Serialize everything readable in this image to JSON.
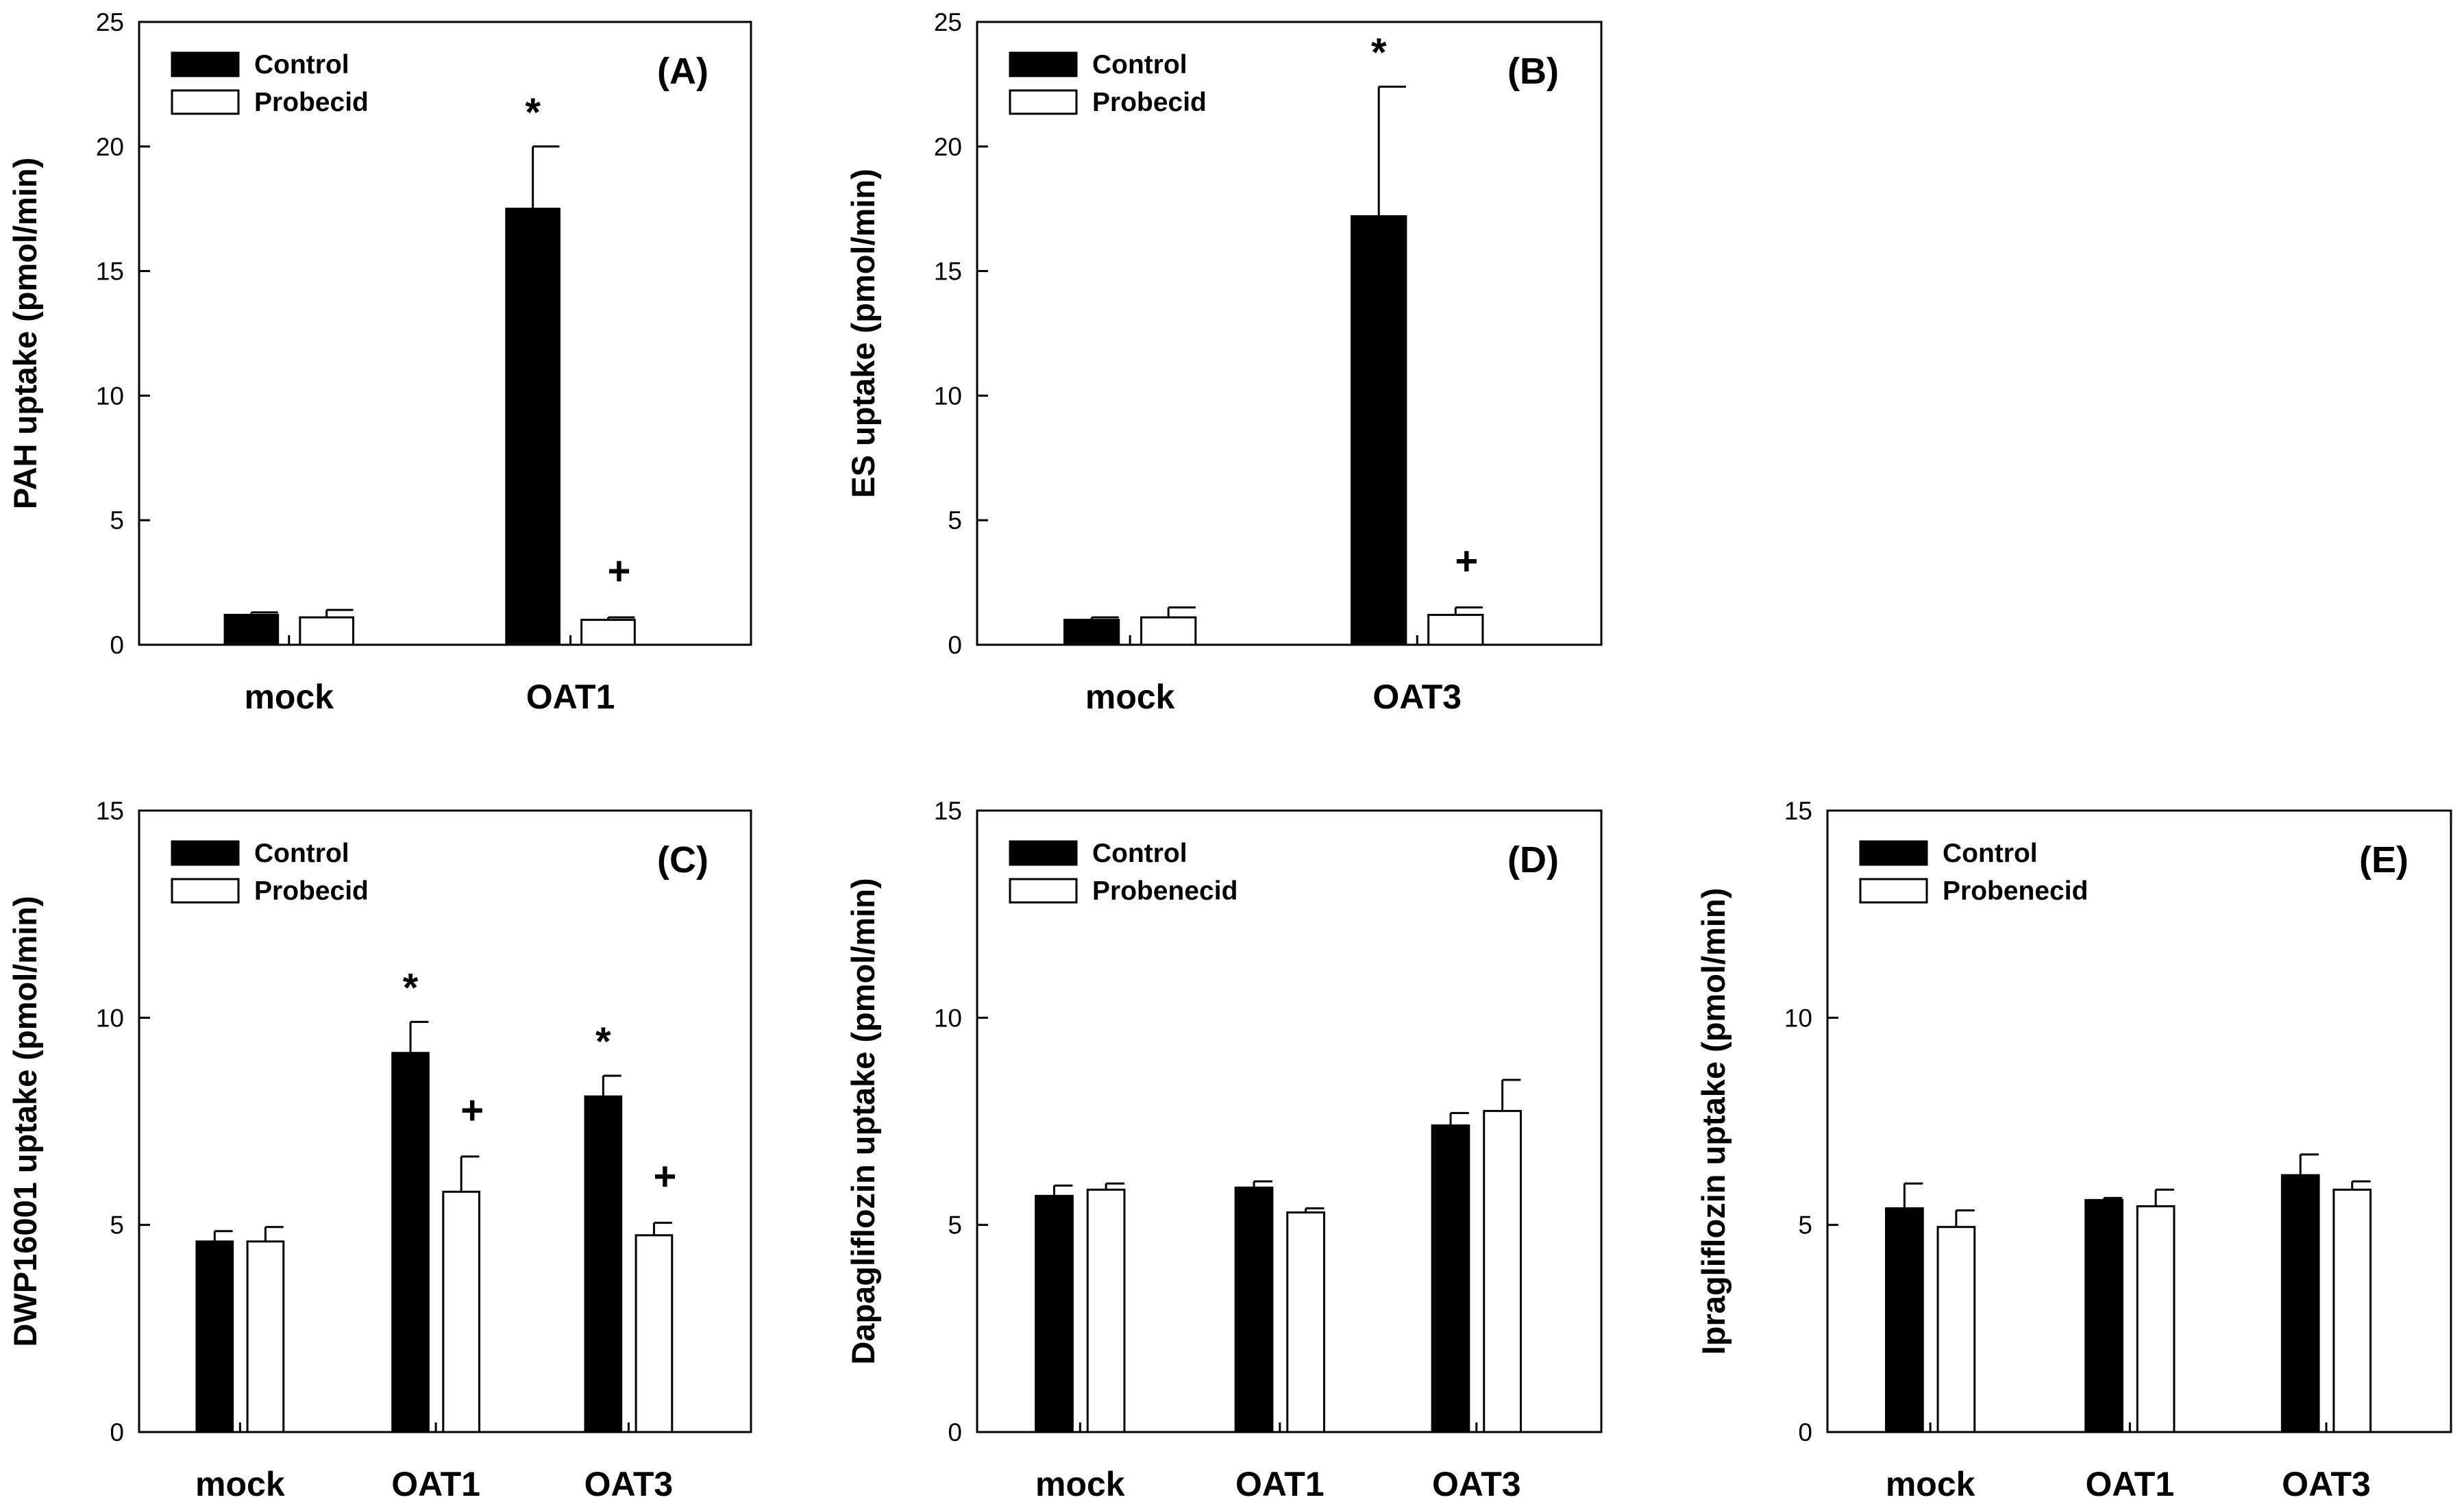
{
  "figure": {
    "colors": {
      "control": "#000000",
      "probecid": "#ffffff",
      "stroke": "#000000"
    }
  },
  "chart_data": [
    {
      "type": "bar",
      "panel_label": "(A)",
      "ylabel": "PAH uptake (pmol/min)",
      "xlabel": "",
      "ylim": [
        0,
        25
      ],
      "yticks": [
        0,
        5,
        10,
        15,
        20,
        25
      ],
      "categories": [
        "mock",
        "OAT1"
      ],
      "series": [
        {
          "name": "Control",
          "values": [
            1.2,
            17.5
          ],
          "errors": [
            0.1,
            2.5
          ]
        },
        {
          "name": "Probecid",
          "values": [
            1.1,
            1.0
          ],
          "errors": [
            0.3,
            0.1
          ]
        }
      ],
      "annotations": [
        {
          "text": "*",
          "category": "OAT1",
          "series": "Control"
        },
        {
          "text": "+",
          "category": "OAT1",
          "series": "Probecid"
        }
      ],
      "legend": "top-left",
      "grid": false
    },
    {
      "type": "bar",
      "panel_label": "(B)",
      "ylabel": "ES uptake (pmol/min)",
      "xlabel": "",
      "ylim": [
        0,
        25
      ],
      "yticks": [
        0,
        5,
        10,
        15,
        20,
        25
      ],
      "categories": [
        "mock",
        "OAT3"
      ],
      "series": [
        {
          "name": "Control",
          "values": [
            1.0,
            17.2
          ],
          "errors": [
            0.1,
            5.2
          ]
        },
        {
          "name": "Probecid",
          "values": [
            1.1,
            1.2
          ],
          "errors": [
            0.4,
            0.3
          ]
        }
      ],
      "annotations": [
        {
          "text": "*",
          "category": "OAT3",
          "series": "Control"
        },
        {
          "text": "+",
          "category": "OAT3",
          "series": "Probecid"
        }
      ],
      "legend": "top-left",
      "grid": false
    },
    {
      "type": "bar",
      "panel_label": "(C)",
      "ylabel": "DWP16001 uptake (pmol/min)",
      "xlabel": "",
      "ylim": [
        0,
        15
      ],
      "yticks": [
        0,
        5,
        10,
        15
      ],
      "categories": [
        "mock",
        "OAT1",
        "OAT3"
      ],
      "series": [
        {
          "name": "Control",
          "values": [
            4.6,
            9.15,
            8.1
          ],
          "errors": [
            0.25,
            0.75,
            0.5
          ]
        },
        {
          "name": "Probecid",
          "values": [
            4.6,
            5.8,
            4.75
          ],
          "errors": [
            0.35,
            0.85,
            0.3
          ]
        }
      ],
      "annotations": [
        {
          "text": "*",
          "category": "OAT1",
          "series": "Control"
        },
        {
          "text": "+",
          "category": "OAT1",
          "series": "Probecid"
        },
        {
          "text": "*",
          "category": "OAT3",
          "series": "Control"
        },
        {
          "text": "+",
          "category": "OAT3",
          "series": "Probecid"
        }
      ],
      "legend": "top-left",
      "grid": false
    },
    {
      "type": "bar",
      "panel_label": "(D)",
      "ylabel": "Dapagliflozin uptake (pmol/min)",
      "xlabel": "",
      "ylim": [
        0,
        15
      ],
      "yticks": [
        0,
        5,
        10,
        15
      ],
      "categories": [
        "mock",
        "OAT1",
        "OAT3"
      ],
      "series": [
        {
          "name": "Control",
          "values": [
            5.7,
            5.9,
            7.4
          ],
          "errors": [
            0.25,
            0.15,
            0.3
          ]
        },
        {
          "name": "Probenecid",
          "values": [
            5.85,
            5.3,
            7.75
          ],
          "errors": [
            0.15,
            0.1,
            0.75
          ]
        }
      ],
      "annotations": [],
      "legend": "top-left",
      "grid": false
    },
    {
      "type": "bar",
      "panel_label": "(E)",
      "ylabel": "Ipragliflozin uptake (pmol/min)",
      "xlabel": "",
      "ylim": [
        0,
        15
      ],
      "yticks": [
        0,
        5,
        10,
        15
      ],
      "categories": [
        "mock",
        "OAT1",
        "OAT3"
      ],
      "series": [
        {
          "name": "Control",
          "values": [
            5.4,
            5.6,
            6.2
          ],
          "errors": [
            0.6,
            0.05,
            0.5
          ]
        },
        {
          "name": "Probenecid",
          "values": [
            4.95,
            5.45,
            5.85
          ],
          "errors": [
            0.4,
            0.4,
            0.2
          ]
        }
      ],
      "annotations": [],
      "legend": "top-left",
      "grid": false
    }
  ]
}
